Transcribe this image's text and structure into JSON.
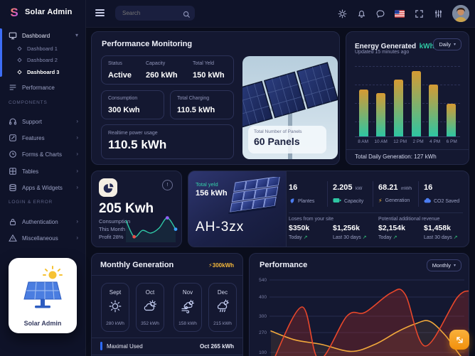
{
  "app": {
    "name": "Solar Admin",
    "logo_letter": "S"
  },
  "icons": {
    "chevron_down": "▾",
    "chevron_right": "›",
    "caret": "▾",
    "trend_up": "↗",
    "lightning": "⚡",
    "info": "!"
  },
  "colors": {
    "accent_teal": "#2ec5a2",
    "accent_orange": "#f2a93b",
    "accent_red": "#e8472b",
    "accent_blue": "#3d6df5",
    "accent_yellow": "#f6b93b",
    "card_bg": "#141831"
  },
  "sidebar": {
    "logo": "Solar Admin",
    "dashboard": "Dashboard",
    "dashboard_items": [
      {
        "label": "Dashboard 1"
      },
      {
        "label": "Dashboard 2"
      },
      {
        "label": "Dashboard 3"
      }
    ],
    "performance": "Performance",
    "section1_title": "COMPONENTS",
    "section1": [
      {
        "label": "Support"
      },
      {
        "label": "Features"
      },
      {
        "label": "Forms & Charts"
      },
      {
        "label": "Tables"
      },
      {
        "label": "Apps & Widgets"
      }
    ],
    "section2_title": "LOGIN & ERROR",
    "section2": [
      {
        "label": "Authentication"
      },
      {
        "label": "Miscellaneous"
      }
    ],
    "promo_label": "Solar Admin"
  },
  "topbar": {
    "search_placeholder": "Search"
  },
  "perf_monitoring": {
    "title": "Performance Monitoring",
    "status_label": "Status",
    "status_value": "Active",
    "capacity_label": "Capacity",
    "capacity_value": "260 kWh",
    "yield_label": "Total Yeld",
    "yield_value": "150 kWh",
    "consumption_label": "Consumption",
    "consumption_value": "300 Kwh",
    "charging_label": "Total Charging",
    "charging_value": "110.5 kWh",
    "realtime_label": "Realtime power usage",
    "realtime_value": "110.5 kWh",
    "panels_label": "Total Number of Panels",
    "panels_value": "60 Panels"
  },
  "energy": {
    "title": "Energy Generated",
    "title_unit": "kWh",
    "updated": "Updated 15 minutes ago",
    "range_button": "Daily",
    "footer": "Total Daily Generation: 127 kWh"
  },
  "consumption_card": {
    "value": "205 Kwh",
    "line1": "Consumption",
    "line2": "This Month",
    "line3": "Profit 28%"
  },
  "yield_card": {
    "label": "Total yeld",
    "value": "156 kWh",
    "model": "AH-3zx"
  },
  "stats": {
    "items": [
      {
        "value": "16",
        "unit": "",
        "label": "Plantes"
      },
      {
        "value": "2.205",
        "unit": "kW",
        "label": "Capacity"
      },
      {
        "value": "68.21",
        "unit": "mWh",
        "label": "Generation"
      },
      {
        "value": "16",
        "unit": "",
        "label": "CO2 Saved"
      }
    ],
    "loss_title": "Loses from your site",
    "loss_today_value": "$350k",
    "loss_today_label": "Today",
    "loss_month_value": "$1,256k",
    "loss_month_label": "Last 30 days",
    "revenue_title": "Potential additional revenue",
    "revenue_today_value": "$2,154k",
    "revenue_today_label": "Today",
    "revenue_month_value": "$1,458k",
    "revenue_month_label": "Last 30 days"
  },
  "monthly": {
    "title": "Monthly Generation",
    "badge": "300kWh",
    "months": [
      {
        "name": "Sept",
        "value": "280 kWh",
        "condition": "sunny"
      },
      {
        "name": "Oct",
        "value": "352 kWh",
        "condition": "partly-cloudy"
      },
      {
        "name": "Nov",
        "value": "158 kWh",
        "condition": "windy"
      },
      {
        "name": "Dec",
        "value": "215 kWh",
        "condition": "rainy"
      }
    ],
    "footer_label": "Maximal Used",
    "footer_value": "Oct 265 kWh"
  },
  "performance_panel": {
    "title": "Performance",
    "range_button": "Monthly"
  },
  "chart_data": [
    {
      "id": "energy_generated",
      "type": "bar",
      "title": "Energy Generated kWh",
      "categories": [
        "8 AM",
        "10 AM",
        "12 PM",
        "2 PM",
        "4 PM",
        "6 PM"
      ],
      "values": [
        67,
        62,
        81,
        93,
        74,
        46
      ],
      "ylim": [
        0,
        100
      ],
      "value_note": "bars unlabeled; values are % of chart height; daily total shown as 127 kWh",
      "gradient": [
        "#d59a33",
        "#2ec5a2"
      ],
      "grid": "dashed horizontal"
    },
    {
      "id": "consumption_sparkline",
      "type": "line",
      "values": [
        85,
        12,
        40,
        28,
        50,
        95,
        45
      ],
      "ylim": [
        0,
        100
      ],
      "line_color": "#2fc9a7",
      "markers": [
        {
          "index": 1,
          "color": "#e8504a"
        },
        {
          "index": 5,
          "color": "#9061f7"
        },
        {
          "index": 6,
          "color": "#3aa0ff"
        }
      ]
    },
    {
      "id": "performance",
      "type": "area",
      "title": "Performance",
      "y_ticks": [
        "540",
        "400",
        "300",
        "270",
        "100"
      ],
      "grid": true,
      "legend": false,
      "series": [
        {
          "name": "series-red",
          "color": "#e8472b",
          "fill": "rgba(190,45,35,0.28)",
          "x_frac": [
            0.01,
            0.155,
            0.24,
            0.38,
            0.47,
            0.6,
            0.67,
            0.77,
            0.93,
            1.0
          ],
          "y_frac": [
            0.97,
            0.36,
            0.95,
            0.46,
            0.42,
            0.2,
            0.22,
            0.8,
            0.25,
            0.18
          ],
          "values_est": [
            100,
            330,
            105,
            295,
            305,
            405,
            400,
            160,
            390,
            410
          ]
        },
        {
          "name": "series-orange",
          "color": "#f2a93b",
          "fill": "rgba(242,169,59,0.10)",
          "x_frac": [
            0.0,
            0.12,
            0.25,
            0.4,
            0.52,
            0.63,
            0.72,
            0.79,
            0.87,
            0.95,
            1.0
          ],
          "y_frac": [
            0.63,
            0.73,
            0.78,
            0.86,
            0.78,
            0.64,
            0.55,
            0.52,
            0.68,
            0.92,
            0.96
          ],
          "values_est": [
            270,
            230,
            205,
            170,
            205,
            265,
            290,
            300,
            245,
            120,
            105
          ]
        }
      ]
    }
  ]
}
